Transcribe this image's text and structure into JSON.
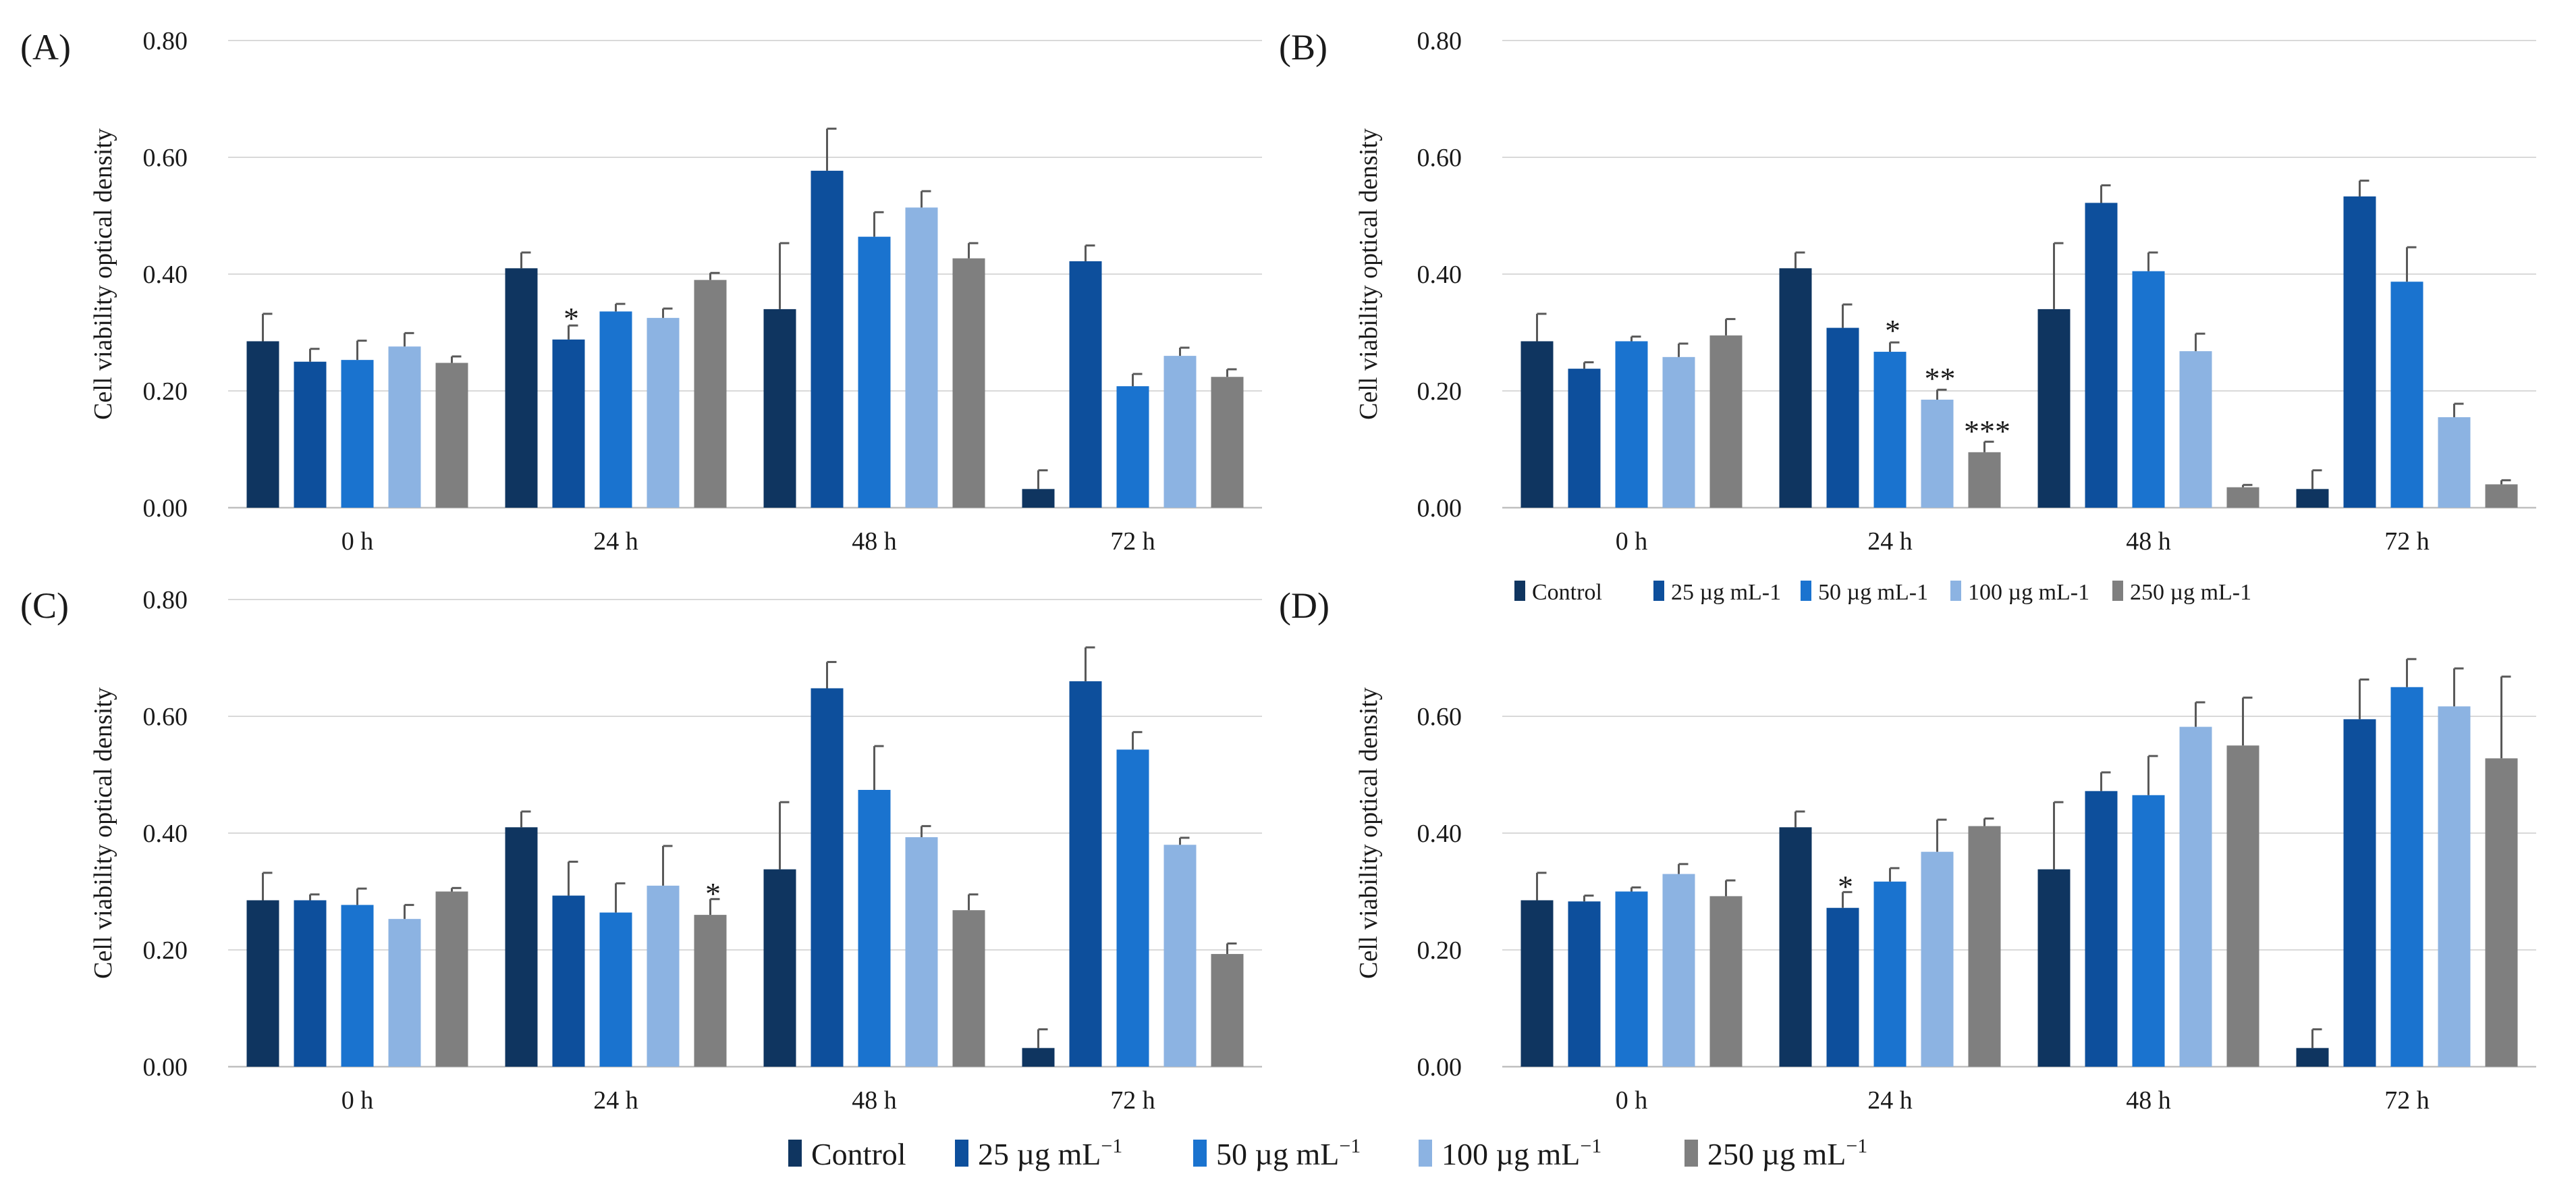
{
  "colors": [
    "#0f3560",
    "#0d4f9c",
    "#1a73cf",
    "#8cb3e2",
    "#7f7f7f"
  ],
  "series_names": [
    "Control",
    "25 µg mL-1",
    "50 µg mL-1",
    "100 µg mL-1",
    "250 µg mL-1"
  ],
  "legend_small": {
    "items": [
      "Control",
      "25 µg mL-1",
      "50 µg mL-1",
      "100 µg mL-1",
      "250 µg mL-1"
    ]
  },
  "legend_big": {
    "items": [
      {
        "base": "Control",
        "sup": ""
      },
      {
        "base": "25 µg mL",
        "sup": "−1"
      },
      {
        "base": "50 µg mL",
        "sup": "−1"
      },
      {
        "base": "100 µg mL",
        "sup": "−1"
      },
      {
        "base": "250 µg mL",
        "sup": "−1"
      }
    ]
  },
  "chart_data": [
    {
      "type": "bar",
      "panel": "(A)",
      "ylabel": "Cell viability optical density",
      "ylim": [
        0,
        0.8
      ],
      "yticks": [
        "0.00",
        "0.20",
        "0.40",
        "0.60",
        "0.80"
      ],
      "categories": [
        "0 h",
        "24 h",
        "48 h",
        "72 h"
      ],
      "series": [
        {
          "name": "Control",
          "values": [
            0.285,
            0.41,
            0.34,
            0.032
          ],
          "errors": [
            0.047,
            0.027,
            0.113,
            0.032
          ]
        },
        {
          "name": "25 µg mL-1",
          "values": [
            0.25,
            0.288,
            0.577,
            0.422
          ],
          "errors": [
            0.022,
            0.024,
            0.072,
            0.027
          ]
        },
        {
          "name": "50 µg mL-1",
          "values": [
            0.253,
            0.336,
            0.464,
            0.208
          ],
          "errors": [
            0.033,
            0.013,
            0.042,
            0.021
          ]
        },
        {
          "name": "100 µg mL-1",
          "values": [
            0.276,
            0.325,
            0.514,
            0.26
          ],
          "errors": [
            0.023,
            0.016,
            0.028,
            0.014
          ]
        },
        {
          "name": "250 µg mL-1",
          "values": [
            0.248,
            0.39,
            0.427,
            0.224
          ],
          "errors": [
            0.011,
            0.012,
            0.026,
            0.013
          ]
        }
      ],
      "annotations": [
        {
          "category": "24 h",
          "series": "25 µg mL-1",
          "text": "*"
        }
      ]
    },
    {
      "type": "bar",
      "panel": "(B)",
      "ylabel": "Cell viability optical density",
      "ylim": [
        0,
        0.8
      ],
      "yticks": [
        "0.00",
        "0.20",
        "0.40",
        "0.60",
        "0.80"
      ],
      "categories": [
        "0 h",
        "24 h",
        "48 h",
        "72 h"
      ],
      "series": [
        {
          "name": "Control",
          "values": [
            0.285,
            0.41,
            0.34,
            0.032
          ],
          "errors": [
            0.047,
            0.027,
            0.113,
            0.032
          ]
        },
        {
          "name": "25 µg mL-1",
          "values": [
            0.238,
            0.308,
            0.522,
            0.533
          ],
          "errors": [
            0.011,
            0.04,
            0.03,
            0.027
          ]
        },
        {
          "name": "50 µg mL-1",
          "values": [
            0.285,
            0.267,
            0.405,
            0.387
          ],
          "errors": [
            0.008,
            0.016,
            0.032,
            0.059
          ]
        },
        {
          "name": "100 µg mL-1",
          "values": [
            0.258,
            0.185,
            0.268,
            0.155
          ],
          "errors": [
            0.023,
            0.017,
            0.03,
            0.023
          ]
        },
        {
          "name": "250 µg mL-1",
          "values": [
            0.295,
            0.095,
            0.035,
            0.04
          ],
          "errors": [
            0.028,
            0.018,
            0.004,
            0.007
          ]
        }
      ],
      "annotations": [
        {
          "category": "24 h",
          "series": "50 µg mL-1",
          "text": "*"
        },
        {
          "category": "24 h",
          "series": "100 µg mL-1",
          "text": "**"
        },
        {
          "category": "24 h",
          "series": "250 µg mL-1",
          "text": "***"
        }
      ]
    },
    {
      "type": "bar",
      "panel": "(C)",
      "ylabel": "Cell viability optical density",
      "ylim": [
        0,
        0.8
      ],
      "yticks": [
        "0.00",
        "0.20",
        "0.40",
        "0.60",
        "0.80"
      ],
      "categories": [
        "0 h",
        "24 h",
        "48 h",
        "72 h"
      ],
      "series": [
        {
          "name": "Control",
          "values": [
            0.285,
            0.41,
            0.338,
            0.032
          ],
          "errors": [
            0.047,
            0.027,
            0.115,
            0.032
          ]
        },
        {
          "name": "25 µg mL-1",
          "values": [
            0.285,
            0.293,
            0.648,
            0.66
          ],
          "errors": [
            0.01,
            0.058,
            0.045,
            0.058
          ]
        },
        {
          "name": "50 µg mL-1",
          "values": [
            0.277,
            0.264,
            0.474,
            0.543
          ],
          "errors": [
            0.028,
            0.05,
            0.075,
            0.03
          ]
        },
        {
          "name": "100 µg mL-1",
          "values": [
            0.253,
            0.31,
            0.393,
            0.38
          ],
          "errors": [
            0.024,
            0.068,
            0.019,
            0.012
          ]
        },
        {
          "name": "250 µg mL-1",
          "values": [
            0.3,
            0.26,
            0.268,
            0.193
          ],
          "errors": [
            0.006,
            0.027,
            0.027,
            0.018
          ]
        }
      ],
      "annotations": [
        {
          "category": "24 h",
          "series": "250 µg mL-1",
          "text": "*"
        }
      ]
    },
    {
      "type": "bar",
      "panel": "(D)",
      "ylabel": "Cell viability optical density",
      "ylim": [
        0,
        0.72
      ],
      "yticks": [
        "0.00",
        "0.20",
        "0.40",
        "0.60"
      ],
      "categories": [
        "0 h",
        "24 h",
        "48 h",
        "72 h"
      ],
      "series": [
        {
          "name": "Control",
          "values": [
            0.285,
            0.41,
            0.338,
            0.032
          ],
          "errors": [
            0.047,
            0.027,
            0.115,
            0.032
          ]
        },
        {
          "name": "25 µg mL-1",
          "values": [
            0.283,
            0.272,
            0.472,
            0.595
          ],
          "errors": [
            0.01,
            0.027,
            0.032,
            0.068
          ]
        },
        {
          "name": "50 µg mL-1",
          "values": [
            0.3,
            0.317,
            0.465,
            0.65
          ],
          "errors": [
            0.007,
            0.023,
            0.067,
            0.048
          ]
        },
        {
          "name": "100 µg mL-1",
          "values": [
            0.33,
            0.368,
            0.582,
            0.617
          ],
          "errors": [
            0.017,
            0.055,
            0.042,
            0.065
          ]
        },
        {
          "name": "250 µg mL-1",
          "values": [
            0.292,
            0.412,
            0.55,
            0.528
          ],
          "errors": [
            0.027,
            0.013,
            0.082,
            0.14
          ]
        }
      ],
      "annotations": [
        {
          "category": "24 h",
          "series": "25 µg mL-1",
          "text": "*"
        }
      ]
    }
  ]
}
